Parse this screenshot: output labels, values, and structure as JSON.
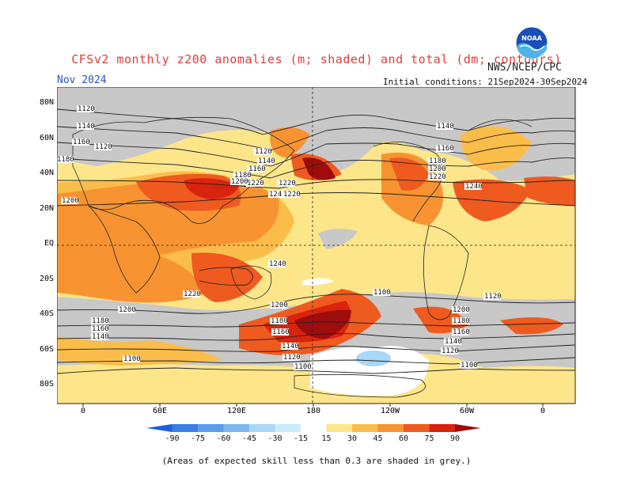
{
  "header": {
    "title": "CFSv2 monthly z200 anomalies (m; shaded) and total (dm; contours)",
    "month": "Nov 2024",
    "agency": "NWS/NCEP/CPC",
    "initial_conditions": "Initial conditions: 21Sep2024-30Sep2024",
    "logo_text": "NOAA"
  },
  "map": {
    "lat_ticks": [
      "80N",
      "60N",
      "40N",
      "20N",
      "EQ",
      "20S",
      "40S",
      "60S",
      "80S"
    ],
    "lon_ticks": [
      "0",
      "60E",
      "120E",
      "180",
      "120W",
      "60W",
      "0"
    ],
    "contour_labels": [
      "1120",
      "1140",
      "1160",
      "1180",
      "1200",
      "1220",
      "1240",
      "1120",
      "1140",
      "1160",
      "1180",
      "1200",
      "1220",
      "1240",
      "1220",
      "1200",
      "1180",
      "1160",
      "1140",
      "1120",
      "1100",
      "1100",
      "1120",
      "1140",
      "1160",
      "1180",
      "1200",
      "1220",
      "1240",
      "1200",
      "1180",
      "1160",
      "1140",
      "1120",
      "1100",
      "1220",
      "1200",
      "1180",
      "1160",
      "1140",
      "1120",
      "1100"
    ],
    "grey_note_color": "#c8c8c8"
  },
  "colorbar": {
    "labels": [
      "-90",
      "-75",
      "-60",
      "-45",
      "-30",
      "-15",
      "15",
      "30",
      "45",
      "60",
      "75",
      "90"
    ],
    "colors": [
      "#1e5fd8",
      "#3a7ee6",
      "#5a9ded",
      "#7eb8f2",
      "#a9d7f7",
      "#c9ecfb",
      "#ffffff",
      "#fde68a",
      "#fbbd4a",
      "#f79431",
      "#ef5a1f",
      "#d8240e",
      "#9e0c0c"
    ]
  },
  "footnote": "(Areas of expected skill less than 0.3 are shaded in grey.)"
}
